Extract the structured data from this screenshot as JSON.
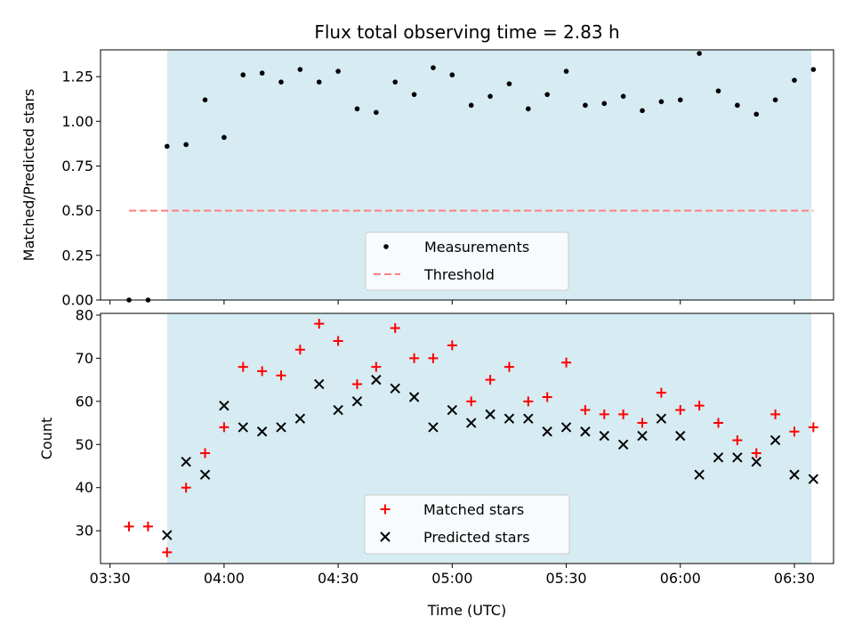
{
  "chart_data": {
    "type": "scatter",
    "title": "Flux total observing time = 2.83 h",
    "xlabel": "Time (UTC)",
    "x_tick_labels": [
      "03:30",
      "04:00",
      "04:30",
      "05:00",
      "05:30",
      "06:00",
      "06:30"
    ],
    "x_tick_values_min": [
      210,
      240,
      270,
      300,
      330,
      360,
      390
    ],
    "xlim_min": [
      207.5,
      400.3
    ],
    "highlight_span_min": [
      225,
      394.5
    ],
    "highlight_color": "#add8e6",
    "times_min": [
      215,
      220,
      225,
      230,
      235,
      240,
      245,
      250,
      255,
      260,
      265,
      270,
      275,
      280,
      285,
      290,
      295,
      300,
      305,
      310,
      315,
      320,
      325,
      330,
      335,
      340,
      345,
      350,
      355,
      360,
      365,
      370,
      375,
      380,
      385,
      390,
      395
    ],
    "panels": [
      {
        "ylabel": "Matched/Predicted stars",
        "ylim": [
          0,
          1.4
        ],
        "y_ticks": [
          0.0,
          0.25,
          0.5,
          0.75,
          1.0,
          1.25
        ],
        "y_tick_labels": [
          "0.00",
          "0.25",
          "0.50",
          "0.75",
          "1.00",
          "1.25"
        ],
        "series": [
          {
            "name": "Measurements",
            "marker": "dot",
            "color": "#000000",
            "values": [
              0.0,
              0.0,
              0.86,
              0.87,
              1.12,
              0.91,
              1.26,
              1.27,
              1.22,
              1.29,
              1.22,
              1.28,
              1.07,
              1.05,
              1.22,
              1.15,
              1.3,
              1.26,
              1.09,
              1.14,
              1.21,
              1.07,
              1.15,
              1.28,
              1.09,
              1.1,
              1.14,
              1.06,
              1.11,
              1.12,
              1.38,
              1.17,
              1.09,
              1.04,
              1.12,
              1.23,
              1.29
            ]
          },
          {
            "name": "Threshold",
            "marker": "dashed-line",
            "color": "#ff7f7f",
            "value": 0.5,
            "x_range_min": [
              215,
              395
            ]
          }
        ],
        "legend": [
          "Measurements",
          "Threshold"
        ],
        "legend_position": "lower-center"
      },
      {
        "ylabel": "Count",
        "ylim": [
          22.4,
          80.4
        ],
        "y_ticks": [
          30,
          40,
          50,
          60,
          70,
          80
        ],
        "y_tick_labels": [
          "30",
          "40",
          "50",
          "60",
          "70",
          "80"
        ],
        "series": [
          {
            "name": "Matched stars",
            "marker": "plus",
            "color": "#ff0000",
            "values": [
              31,
              31,
              25,
              40,
              48,
              54,
              68,
              67,
              66,
              72,
              78,
              74,
              64,
              68,
              77,
              70,
              70,
              73,
              60,
              65,
              68,
              60,
              61,
              69,
              58,
              57,
              57,
              55,
              62,
              58,
              59,
              55,
              51,
              48,
              57,
              53,
              54
            ]
          },
          {
            "name": "Predicted stars",
            "marker": "x",
            "color": "#000000",
            "values": [
              null,
              null,
              29,
              46,
              43,
              59,
              54,
              53,
              54,
              56,
              64,
              58,
              60,
              65,
              63,
              61,
              54,
              58,
              55,
              57,
              56,
              56,
              53,
              54,
              53,
              52,
              50,
              52,
              56,
              52,
              43,
              47,
              47,
              46,
              51,
              43,
              42
            ]
          }
        ],
        "legend": [
          "Matched stars",
          "Predicted stars"
        ],
        "legend_position": "lower-center"
      }
    ]
  }
}
